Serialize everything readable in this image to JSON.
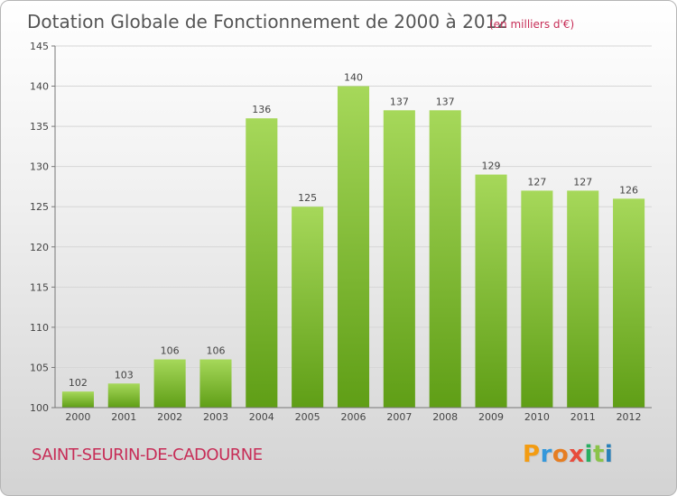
{
  "title": "Dotation Globale de Fonctionnement de 2000 à 2012",
  "subtitle": "(en milliers d'€)",
  "city": "SAINT-SEURIN-DE-CADOURNE",
  "logo": {
    "letters": [
      "P",
      "r",
      "o",
      "x",
      "i",
      "t",
      "i"
    ],
    "colors": [
      "#f39c12",
      "#3498db",
      "#e67e22",
      "#e74c3c",
      "#27ae60",
      "#8bc34a",
      "#2980b9"
    ]
  },
  "colors": {
    "bar_top": "#a6d85a",
    "bar_bottom": "#5f9e16",
    "title": "#555555",
    "subtitle": "#c72d57",
    "grid": "#d6d6d6"
  },
  "chart_data": {
    "type": "bar",
    "categories": [
      "2000",
      "2001",
      "2002",
      "2003",
      "2004",
      "2005",
      "2006",
      "2007",
      "2008",
      "2009",
      "2010",
      "2011",
      "2012"
    ],
    "values": [
      102,
      103,
      106,
      106,
      136,
      125,
      140,
      137,
      137,
      129,
      127,
      127,
      126
    ],
    "value_labels": [
      "102",
      "103",
      "106",
      "106",
      "136",
      "125",
      "140",
      "137",
      "137",
      "129",
      "127",
      "127",
      "126"
    ],
    "ylim": [
      100,
      145
    ],
    "yticks": [
      100,
      105,
      110,
      115,
      120,
      125,
      130,
      135,
      140,
      145
    ],
    "ytick_labels": [
      "100",
      "105",
      "110",
      "115",
      "120",
      "125",
      "130",
      "135",
      "140",
      "145"
    ],
    "grid": true,
    "legend": "none"
  }
}
